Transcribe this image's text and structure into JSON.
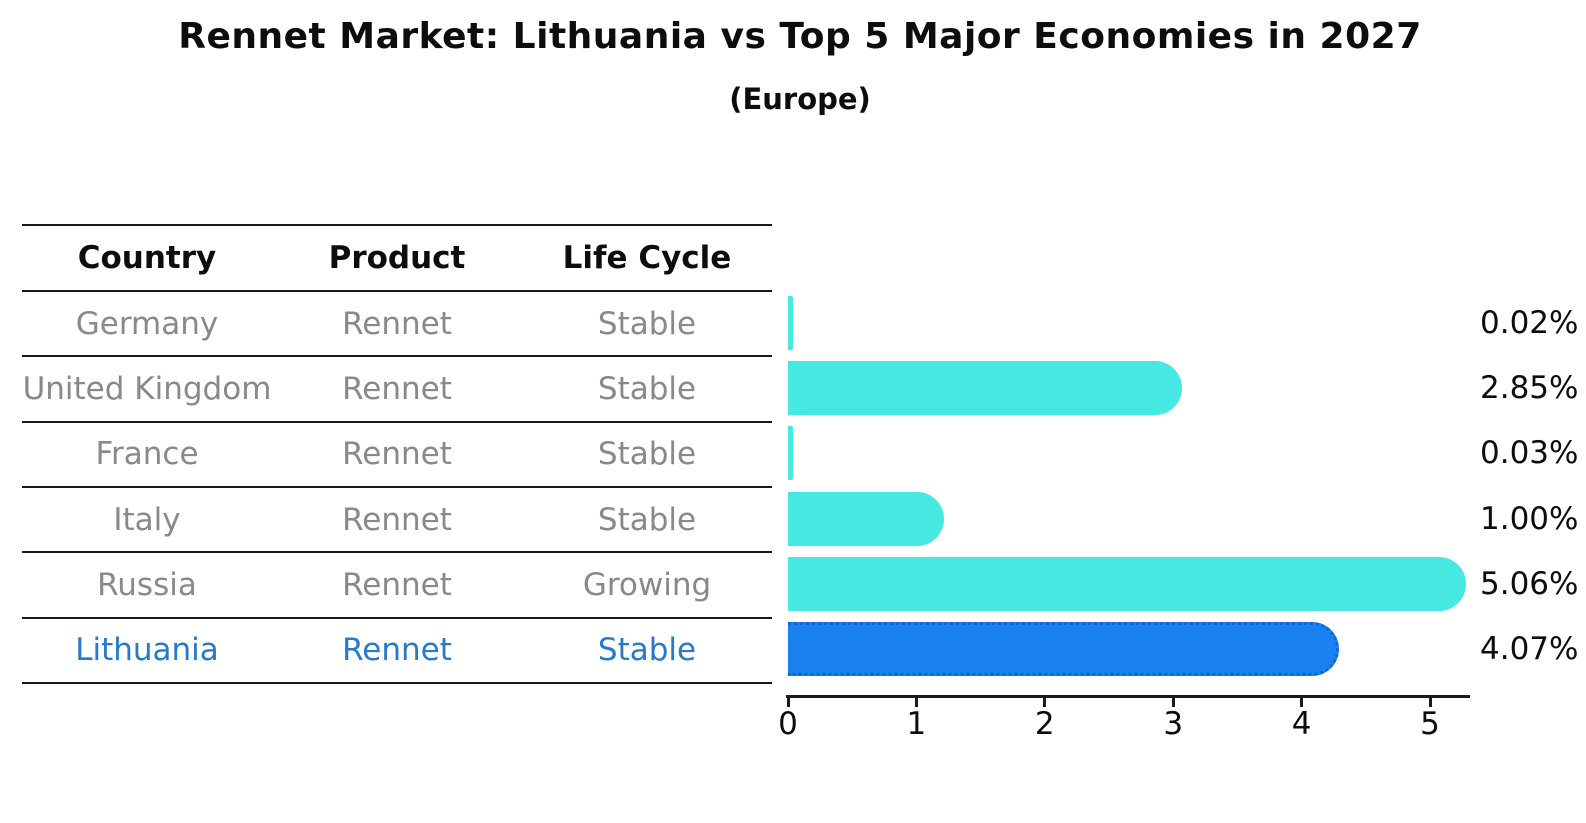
{
  "title": "Rennet Market: Lithuania vs Top 5 Major Economies in 2027",
  "subtitle": "(Europe)",
  "table": {
    "headers": [
      "Country",
      "Product",
      "Life Cycle"
    ],
    "rows": [
      {
        "country": "Germany",
        "product": "Rennet",
        "life_cycle": "Stable",
        "highlight": false
      },
      {
        "country": "United Kingdom",
        "product": "Rennet",
        "life_cycle": "Stable",
        "highlight": false
      },
      {
        "country": "France",
        "product": "Rennet",
        "life_cycle": "Stable",
        "highlight": false
      },
      {
        "country": "Italy",
        "product": "Rennet",
        "life_cycle": "Stable",
        "highlight": false
      },
      {
        "country": "Russia",
        "product": "Rennet",
        "life_cycle": "Growing",
        "highlight": false
      },
      {
        "country": "Lithuania",
        "product": "Rennet",
        "life_cycle": "Stable",
        "highlight": true
      }
    ]
  },
  "chart_data": {
    "type": "bar",
    "orientation": "horizontal",
    "title": "Rennet Market: Lithuania vs Top 5 Major Economies in 2027 (Europe)",
    "categories": [
      "Germany",
      "United Kingdom",
      "France",
      "Italy",
      "Russia",
      "Lithuania"
    ],
    "values": [
      0.02,
      2.85,
      0.03,
      1.0,
      5.06,
      4.07
    ],
    "value_labels": [
      "0.02%",
      "2.85%",
      "0.03%",
      "1.00%",
      "5.06%",
      "4.07%"
    ],
    "x_ticks": [
      "0",
      "1",
      "2",
      "3",
      "4",
      "5"
    ],
    "xlim": [
      0,
      5.3
    ],
    "grid": false,
    "legend": "none",
    "highlight_index": 5,
    "bar_color": "#46e9e2",
    "highlight_bar_color": "#1a82f0",
    "highlight_border_color": "#1563cf",
    "highlight_text_color": "#2779cd",
    "row_text_color": "#898989",
    "axis_color": "#1a1a1a"
  }
}
